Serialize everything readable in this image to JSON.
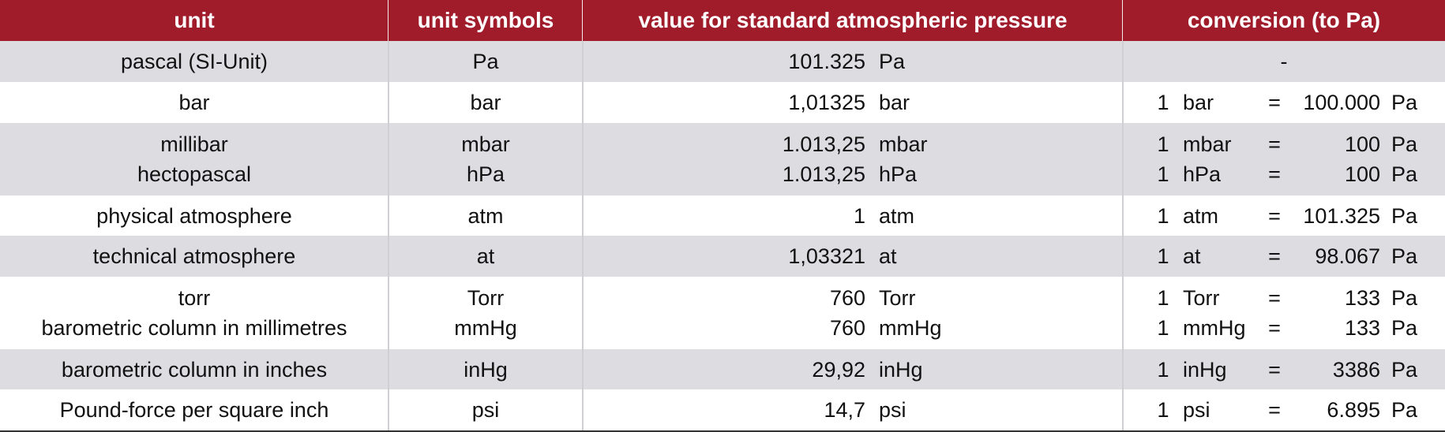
{
  "table": {
    "header": [
      "unit",
      "unit symbols",
      "value for standard atmospheric pressure",
      "conversion (to Pa)"
    ],
    "rows": [
      {
        "lines": [
          {
            "unit": "pascal (SI-Unit)",
            "symbol": "Pa",
            "value": "101.325",
            "value_unit": "Pa",
            "conversion": "-"
          }
        ]
      },
      {
        "lines": [
          {
            "unit": "bar",
            "symbol": "bar",
            "value": "1,01325",
            "value_unit": "bar",
            "conversion": {
              "qty": "1",
              "unit": "bar",
              "eq": "=",
              "number": "100.000",
              "target": "Pa"
            }
          }
        ]
      },
      {
        "lines": [
          {
            "unit": "millibar",
            "symbol": "mbar",
            "value": "1.013,25",
            "value_unit": "mbar",
            "conversion": {
              "qty": "1",
              "unit": "mbar",
              "eq": "=",
              "number": "100",
              "target": "Pa"
            }
          },
          {
            "unit": "hectopascal",
            "symbol": "hPa",
            "value": "1.013,25",
            "value_unit": "hPa",
            "conversion": {
              "qty": "1",
              "unit": "hPa",
              "eq": "=",
              "number": "100",
              "target": "Pa"
            }
          }
        ]
      },
      {
        "lines": [
          {
            "unit": "physical atmosphere",
            "symbol": "atm",
            "value": "1",
            "value_unit": "atm",
            "conversion": {
              "qty": "1",
              "unit": "atm",
              "eq": "=",
              "number": "101.325",
              "target": "Pa"
            }
          }
        ]
      },
      {
        "lines": [
          {
            "unit": "technical atmosphere",
            "symbol": "at",
            "value": "1,03321",
            "value_unit": "at",
            "conversion": {
              "qty": "1",
              "unit": "at",
              "eq": "=",
              "number": "98.067",
              "target": "Pa"
            }
          }
        ]
      },
      {
        "lines": [
          {
            "unit": "torr",
            "symbol": "Torr",
            "value": "760",
            "value_unit": "Torr",
            "conversion": {
              "qty": "1",
              "unit": "Torr",
              "eq": "=",
              "number": "133",
              "target": "Pa"
            }
          },
          {
            "unit": "barometric column in millimetres",
            "symbol": "mmHg",
            "value": "760",
            "value_unit": "mmHg",
            "conversion": {
              "qty": "1",
              "unit": "mmHg",
              "eq": "=",
              "number": "133",
              "target": "Pa"
            }
          }
        ]
      },
      {
        "lines": [
          {
            "unit": "barometric column in inches",
            "symbol": "inHg",
            "value": "29,92",
            "value_unit": "inHg",
            "conversion": {
              "qty": "1",
              "unit": "inHg",
              "eq": "=",
              "number": "3386",
              "target": "Pa"
            }
          }
        ]
      },
      {
        "lines": [
          {
            "unit": "Pound-force per square inch",
            "symbol": "psi",
            "value": "14,7",
            "value_unit": "psi",
            "conversion": {
              "qty": "1",
              "unit": "psi",
              "eq": "=",
              "number": "6.895",
              "target": "Pa"
            }
          }
        ]
      }
    ]
  }
}
